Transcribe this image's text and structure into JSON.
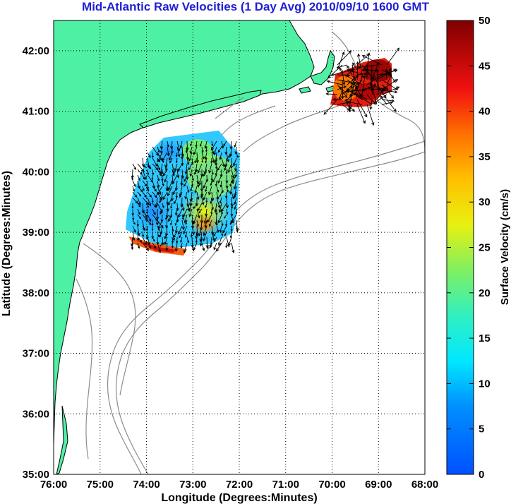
{
  "title": "Mid-Atlantic Raw Velocities (1 Day Avg) 2010/09/10 1600 GMT",
  "xlabel": "Longitude (Degrees:Minutes)",
  "ylabel": "Latitude (Degrees:Minutes)",
  "colorbar_label": "Surface Velocity (cm/s)",
  "x_ticks": [
    "76:00",
    "75:00",
    "74:00",
    "73:00",
    "72:00",
    "71:00",
    "70:00",
    "69:00",
    "68:00"
  ],
  "y_ticks": [
    "42:00",
    "41:00",
    "40:00",
    "39:00",
    "38:00",
    "37:00",
    "36:00",
    "35:00"
  ],
  "colorbar_ticks": [
    "50",
    "45",
    "40",
    "35",
    "30",
    "25",
    "20",
    "15",
    "10",
    "5",
    "0"
  ],
  "colors": {
    "title": "#1f1fd6",
    "land": "#4ef0a4",
    "bathymetry": "#8c8c8c",
    "grid": "#000000",
    "arrows": "#000000"
  },
  "map": {
    "x_range_deg_west": [
      76,
      68
    ],
    "y_range_deg_north": [
      35,
      42.5
    ],
    "grid": true,
    "colorbar_position": "right",
    "colorbar_range": [
      0,
      50
    ],
    "colormap": "jet"
  }
}
